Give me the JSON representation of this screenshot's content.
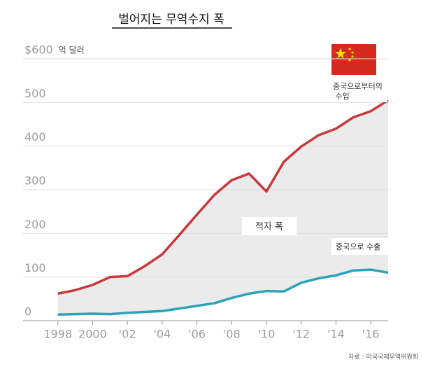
{
  "chart_data": {
    "type": "line",
    "title": "벌어지는 무역수지 폭",
    "y_unit": "억 달러",
    "x": [
      1998,
      1999,
      2000,
      2001,
      2002,
      2003,
      2004,
      2005,
      2006,
      2007,
      2008,
      2009,
      2010,
      2011,
      2012,
      2013,
      2014,
      2015,
      2016,
      2017
    ],
    "series": [
      {
        "name": "중국으로부터의 수입",
        "color": "#c8393b",
        "values": [
          62,
          70,
          82,
          100,
          102,
          125,
          152,
          197,
          243,
          288,
          322,
          337,
          296,
          364,
          399,
          425,
          440,
          466,
          480,
          505
        ]
      },
      {
        "name": "중국으로 수출",
        "color": "#2aa3b8",
        "values": [
          14,
          15,
          16,
          15,
          18,
          20,
          22,
          28,
          34,
          40,
          52,
          62,
          68,
          67,
          87,
          97,
          104,
          115,
          117,
          110
        ]
      }
    ],
    "annotations": [
      "적자 폭"
    ],
    "source": "자료 : 미국국제무역위원회",
    "xlim": [
      1996,
      2017
    ],
    "xticks": [
      {
        "value": 1998,
        "label": "1998"
      },
      {
        "value": 2000,
        "label": "2000"
      },
      {
        "value": 2002,
        "label": "'02"
      },
      {
        "value": 2004,
        "label": "'04"
      },
      {
        "value": 2006,
        "label": "'06"
      },
      {
        "value": 2008,
        "label": "'08"
      },
      {
        "value": 2010,
        "label": "'10"
      },
      {
        "value": 2012,
        "label": "'12"
      },
      {
        "value": 2014,
        "label": "'14"
      },
      {
        "value": 2016,
        "label": "'16"
      }
    ],
    "ylim": [
      0,
      600
    ],
    "yticks": [
      0,
      100,
      200,
      300,
      400,
      500,
      {
        "value": 600,
        "label": "$600"
      }
    ],
    "grid": true
  }
}
